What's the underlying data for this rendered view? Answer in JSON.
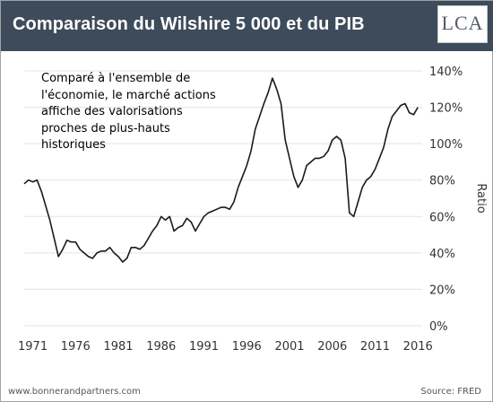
{
  "header": {
    "title": "Comparaison du Wilshire 5 000 et du PIB",
    "logo_text": "LCA"
  },
  "annotation": {
    "text": "Comparé à l'ensemble de l'économie, le marché actions affiche des valorisations proches de plus-hauts historiques"
  },
  "footer": {
    "source_left": "www.bonnerandpartners.com",
    "source_right": "Source: FRED"
  },
  "colors": {
    "header_bg": "#3e4b5b",
    "line": "#1a1a1a",
    "grid": "#e3e3e3",
    "logo_accent": "#c9a227"
  },
  "chart_data": {
    "type": "line",
    "title": "",
    "xlabel": "",
    "ylabel": "Ratio",
    "xlim": [
      1970,
      2016.5
    ],
    "ylim": [
      0,
      140
    ],
    "y_unit": "%",
    "grid": true,
    "x_ticks": [
      1971,
      1976,
      1981,
      1986,
      1991,
      1996,
      2001,
      2006,
      2011,
      2016
    ],
    "y_ticks": [
      0,
      20,
      40,
      60,
      80,
      100,
      120,
      140
    ],
    "y_tick_labels": [
      "0%",
      "20%",
      "40%",
      "60%",
      "80%",
      "100%",
      "120%",
      "140%"
    ],
    "series": [
      {
        "x": [
          1970.0,
          1970.5,
          1971.0,
          1971.5,
          1972.0,
          1972.5,
          1973.0,
          1973.5,
          1974.0,
          1974.5,
          1975.0,
          1975.5,
          1976.0,
          1976.5,
          1977.0,
          1977.5,
          1978.0,
          1978.5,
          1979.0,
          1979.5,
          1980.0,
          1980.5,
          1981.0,
          1981.5,
          1982.0,
          1982.5,
          1983.0,
          1983.5,
          1984.0,
          1984.5,
          1985.0,
          1985.5,
          1986.0,
          1986.5,
          1987.0,
          1987.5,
          1988.0,
          1988.5,
          1989.0,
          1989.5,
          1990.0,
          1990.5,
          1991.0,
          1991.5,
          1992.0,
          1992.5,
          1993.0,
          1993.5,
          1994.0,
          1994.5,
          1995.0,
          1995.5,
          1996.0,
          1996.5,
          1997.0,
          1997.5,
          1998.0,
          1998.5,
          1999.0,
          1999.5,
          2000.0,
          2000.5,
          2001.0,
          2001.5,
          2002.0,
          2002.5,
          2003.0,
          2003.5,
          2004.0,
          2004.5,
          2005.0,
          2005.5,
          2006.0,
          2006.5,
          2007.0,
          2007.5,
          2008.0,
          2008.5,
          2009.0,
          2009.5,
          2010.0,
          2010.5,
          2011.0,
          2011.5,
          2012.0,
          2012.5,
          2013.0,
          2013.5,
          2014.0,
          2014.5,
          2015.0,
          2015.5,
          2016.0
        ],
        "values": [
          78,
          80,
          79,
          80,
          74,
          66,
          58,
          48,
          38,
          42,
          47,
          46,
          46,
          42,
          40,
          38,
          37,
          40,
          41,
          41,
          43,
          40,
          38,
          35,
          37,
          43,
          43,
          42,
          44,
          48,
          52,
          55,
          60,
          58,
          60,
          52,
          54,
          55,
          59,
          57,
          52,
          56,
          60,
          62,
          63,
          64,
          65,
          65,
          64,
          68,
          76,
          82,
          88,
          96,
          108,
          115,
          122,
          128,
          136,
          130,
          122,
          102,
          92,
          82,
          76,
          80,
          88,
          90,
          92,
          92,
          93,
          96,
          102,
          104,
          102,
          92,
          62,
          60,
          68,
          76,
          80,
          82,
          86,
          92,
          98,
          108,
          115,
          118,
          121,
          122,
          117,
          116,
          120
        ]
      }
    ]
  }
}
